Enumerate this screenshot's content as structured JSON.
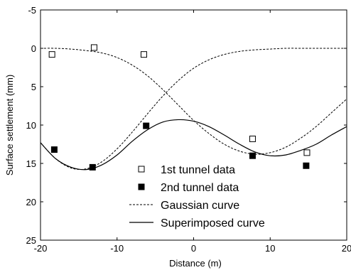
{
  "chart_data": {
    "type": "scatter",
    "title": "",
    "xlabel": "Distance (m)",
    "ylabel": "Surface settlement (mm)",
    "xlim": [
      -20,
      20
    ],
    "ylim": [
      -5,
      25
    ],
    "y_inverted": true,
    "grid": false,
    "legend_position": "lower-center",
    "x_ticks": [
      "-20",
      "-10",
      "0",
      "10",
      "20"
    ],
    "y_ticks": [
      "-5",
      "0",
      "5",
      "10",
      "15",
      "20",
      "25"
    ],
    "series": [
      {
        "name": "1st tunnel data",
        "kind": "scatter",
        "marker": "open-square",
        "x": [
          -18.5,
          -13,
          -6.5,
          7.7,
          14.8
        ],
        "y": [
          0.8,
          -0.1,
          0.8,
          11.8,
          13.6
        ]
      },
      {
        "name": "2nd tunnel data",
        "kind": "scatter",
        "marker": "filled-square",
        "x": [
          -18.2,
          -13.2,
          -6.2,
          7.7,
          14.7
        ],
        "y": [
          13.2,
          15.5,
          10.1,
          14.0,
          15.3
        ]
      },
      {
        "name": "Gaussian curve",
        "kind": "line",
        "style": "dashed",
        "x": [
          -20,
          -18,
          -16,
          -14,
          -12,
          -10,
          -8,
          -6,
          -4,
          -2,
          0,
          2,
          4,
          6,
          8,
          10,
          12,
          14,
          16,
          18,
          20
        ],
        "y": [
          0.0,
          0.0,
          0.1,
          0.3,
          0.6,
          1.2,
          2.2,
          3.6,
          5.4,
          7.4,
          9.4,
          11.1,
          12.5,
          13.4,
          13.8,
          13.6,
          12.9,
          11.7,
          10.2,
          8.4,
          6.6
        ]
      },
      {
        "name": "Gaussian curve (2nd tunnel)",
        "kind": "line",
        "style": "dashed",
        "legend": false,
        "x": [
          -20,
          -18,
          -16,
          -14,
          -12,
          -10,
          -8,
          -6,
          -4,
          -2,
          0,
          2,
          4,
          6,
          8,
          10,
          12,
          14,
          16,
          18,
          20
        ],
        "y": [
          12.3,
          14.4,
          15.6,
          15.7,
          14.8,
          13.1,
          10.9,
          8.5,
          6.2,
          4.2,
          2.6,
          1.5,
          0.8,
          0.4,
          0.2,
          0.1,
          0.0,
          0.0,
          0.0,
          0.0,
          0.0
        ]
      },
      {
        "name": "Superimposed curve",
        "kind": "line",
        "style": "solid",
        "x": [
          -20,
          -18,
          -16,
          -14,
          -12,
          -10,
          -8,
          -6,
          -4,
          -2,
          0,
          2,
          4,
          6,
          8,
          10,
          12,
          14,
          16,
          18,
          20
        ],
        "y": [
          12.3,
          14.4,
          15.5,
          15.8,
          15.2,
          13.9,
          12.1,
          10.6,
          9.6,
          9.3,
          9.5,
          10.2,
          11.3,
          12.5,
          13.5,
          14.0,
          13.9,
          13.3,
          12.5,
          11.3,
          10.2
        ]
      }
    ]
  }
}
